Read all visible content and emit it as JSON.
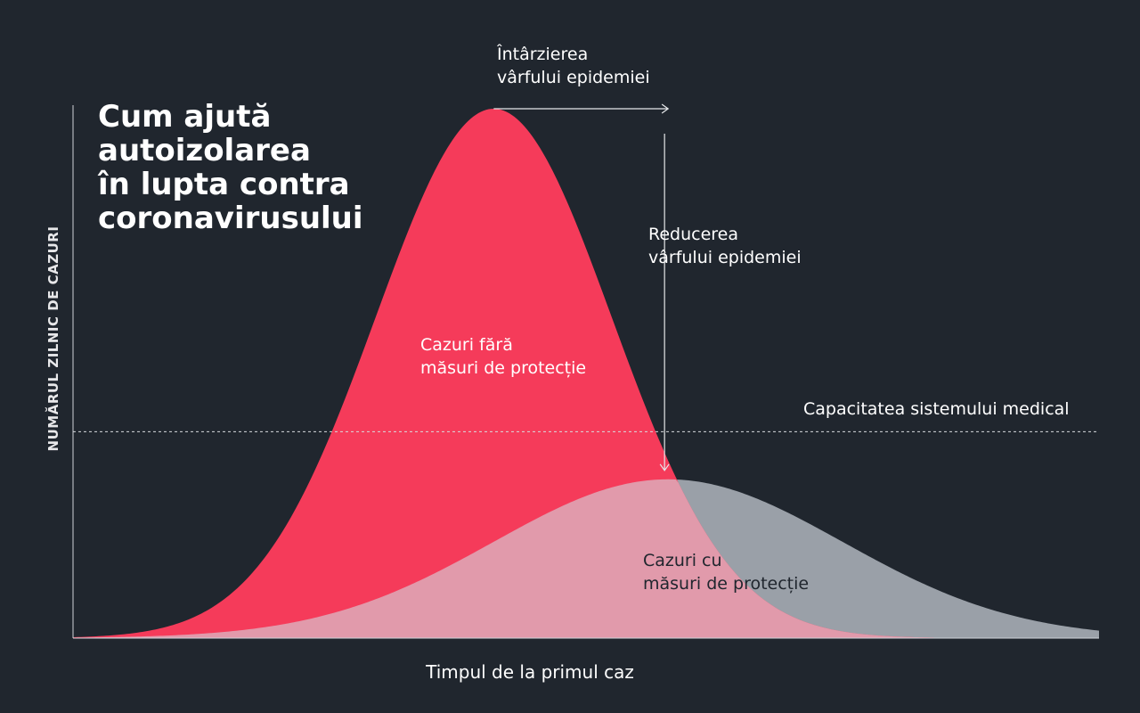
{
  "title": "Cum ajută\nautoizolarea\nîn lupta contra\ncoronavirusului",
  "colors": {
    "background": "#20262e",
    "no_protection": "#f53b5a",
    "with_protection": "#9aa0a8",
    "overlap": "#e19aab",
    "annotation": "#e6e8ea"
  },
  "annotations": {
    "delay": "Întârzierea\nvârfului epidemiei",
    "reduction": "Reducerea\nvârfului epidemiei",
    "capacity": "Capacitatea sistemului medical"
  },
  "chart_data": {
    "type": "area",
    "xlabel": "Timpul de la primul caz",
    "ylabel": "NUMĂRUL ZILNIC DE CAZURI",
    "xlim": [
      0,
      100
    ],
    "ylim": [
      0,
      100
    ],
    "grid": false,
    "series": [
      {
        "name": "Cazuri fără\nmăsuri de protecție",
        "peak_x": 41,
        "peak_y": 100,
        "spread": 11.5
      },
      {
        "name": "Cazuri cu\nmăsuri de protecție",
        "peak_x": 58,
        "peak_y": 30,
        "spread": 17
      }
    ],
    "capacity_line": 39
  }
}
